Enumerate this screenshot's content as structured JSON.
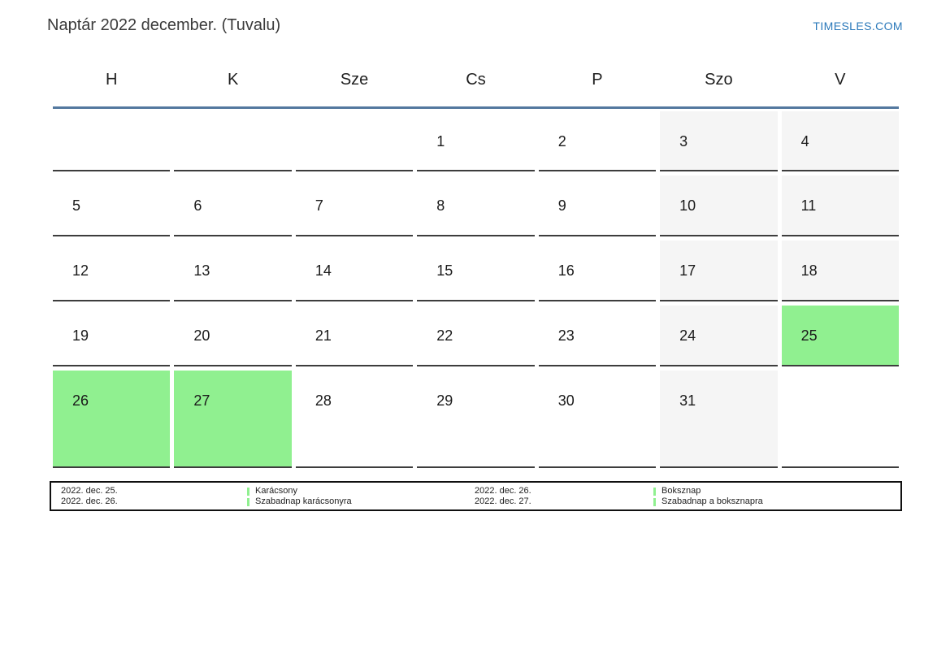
{
  "header": {
    "title": "Naptár 2022 december. (Tuvalu)",
    "site_link": "TIMESLES.COM"
  },
  "calendar": {
    "day_headers": [
      "H",
      "K",
      "Sze",
      "Cs",
      "P",
      "Szo",
      "V"
    ],
    "cells": [
      {
        "day": "",
        "type": "empty"
      },
      {
        "day": "",
        "type": "empty"
      },
      {
        "day": "",
        "type": "empty"
      },
      {
        "day": "1",
        "type": "normal"
      },
      {
        "day": "2",
        "type": "normal"
      },
      {
        "day": "3",
        "type": "weekend"
      },
      {
        "day": "4",
        "type": "weekend"
      },
      {
        "day": "5",
        "type": "normal"
      },
      {
        "day": "6",
        "type": "normal"
      },
      {
        "day": "7",
        "type": "normal"
      },
      {
        "day": "8",
        "type": "normal"
      },
      {
        "day": "9",
        "type": "normal"
      },
      {
        "day": "10",
        "type": "weekend"
      },
      {
        "day": "11",
        "type": "weekend"
      },
      {
        "day": "12",
        "type": "normal"
      },
      {
        "day": "13",
        "type": "normal"
      },
      {
        "day": "14",
        "type": "normal"
      },
      {
        "day": "15",
        "type": "normal"
      },
      {
        "day": "16",
        "type": "normal"
      },
      {
        "day": "17",
        "type": "weekend"
      },
      {
        "day": "18",
        "type": "weekend"
      },
      {
        "day": "19",
        "type": "normal"
      },
      {
        "day": "20",
        "type": "normal"
      },
      {
        "day": "21",
        "type": "normal"
      },
      {
        "day": "22",
        "type": "normal"
      },
      {
        "day": "23",
        "type": "normal"
      },
      {
        "day": "24",
        "type": "weekend"
      },
      {
        "day": "25",
        "type": "holiday"
      },
      {
        "day": "26",
        "type": "holiday"
      },
      {
        "day": "27",
        "type": "holiday"
      },
      {
        "day": "28",
        "type": "normal"
      },
      {
        "day": "29",
        "type": "normal"
      },
      {
        "day": "30",
        "type": "normal"
      },
      {
        "day": "31",
        "type": "weekend"
      },
      {
        "day": "",
        "type": "empty"
      }
    ]
  },
  "legend": {
    "entries": [
      {
        "dates": [
          "2022. dec. 25.",
          "2022. dec. 26."
        ],
        "labels": [
          "Karácsony",
          "Szabadnap karácsonyra"
        ]
      },
      {
        "dates": [
          "2022. dec. 26.",
          "2022. dec. 27."
        ],
        "labels": [
          "Boksznap",
          "Szabadnap a boksznapra"
        ]
      }
    ]
  },
  "colors": {
    "holiday_green": "#90f090",
    "weekend_gray": "#f5f5f5",
    "header_line_blue": "#54789f",
    "link_blue": "#2b79ba"
  }
}
